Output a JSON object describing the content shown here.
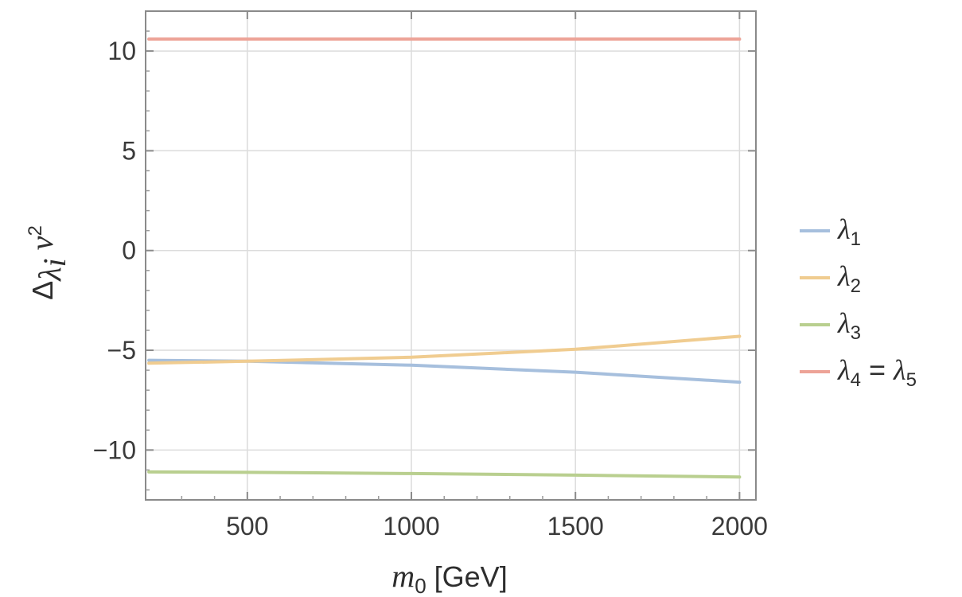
{
  "chart_data": {
    "type": "line",
    "title": "",
    "xlabel": {
      "main": "m",
      "sub": "0",
      "unit": " [GeV]"
    },
    "ylabel": {
      "main": "Δ",
      "sub": "λ",
      "subsub": "i",
      "after": " v",
      "sup": "2"
    },
    "xlim": [
      190,
      2050
    ],
    "ylim": [
      -12.5,
      12
    ],
    "xticks": [
      500,
      1000,
      1500,
      2000
    ],
    "xtick_labels": [
      "500",
      "1000",
      "1500",
      "2000"
    ],
    "yticks": [
      10,
      5,
      0,
      -5,
      -10
    ],
    "ytick_labels": [
      "10",
      "5",
      "0",
      "−5",
      "−10"
    ],
    "grid": true,
    "legend_position": "right",
    "x": [
      200,
      500,
      1000,
      1500,
      2000
    ],
    "series": [
      {
        "name": "λ1",
        "label_main": "λ",
        "label_sub": "1",
        "color": "#a6bfdd",
        "values": [
          -5.5,
          -5.55,
          -5.75,
          -6.1,
          -6.6
        ]
      },
      {
        "name": "λ2",
        "label_main": "λ",
        "label_sub": "2",
        "color": "#f0cc90",
        "values": [
          -5.65,
          -5.55,
          -5.35,
          -4.95,
          -4.3
        ]
      },
      {
        "name": "λ3",
        "label_main": "λ",
        "label_sub": "3",
        "color": "#b9cf8f",
        "values": [
          -11.1,
          -11.12,
          -11.18,
          -11.26,
          -11.35
        ]
      },
      {
        "name": "λ4 = λ5",
        "label_main": "λ",
        "label_sub": "4",
        "label_eq": " = ",
        "label_main2": "λ",
        "label_sub2": "5",
        "color": "#eda397",
        "values": [
          10.6,
          10.6,
          10.6,
          10.6,
          10.6
        ]
      }
    ]
  }
}
